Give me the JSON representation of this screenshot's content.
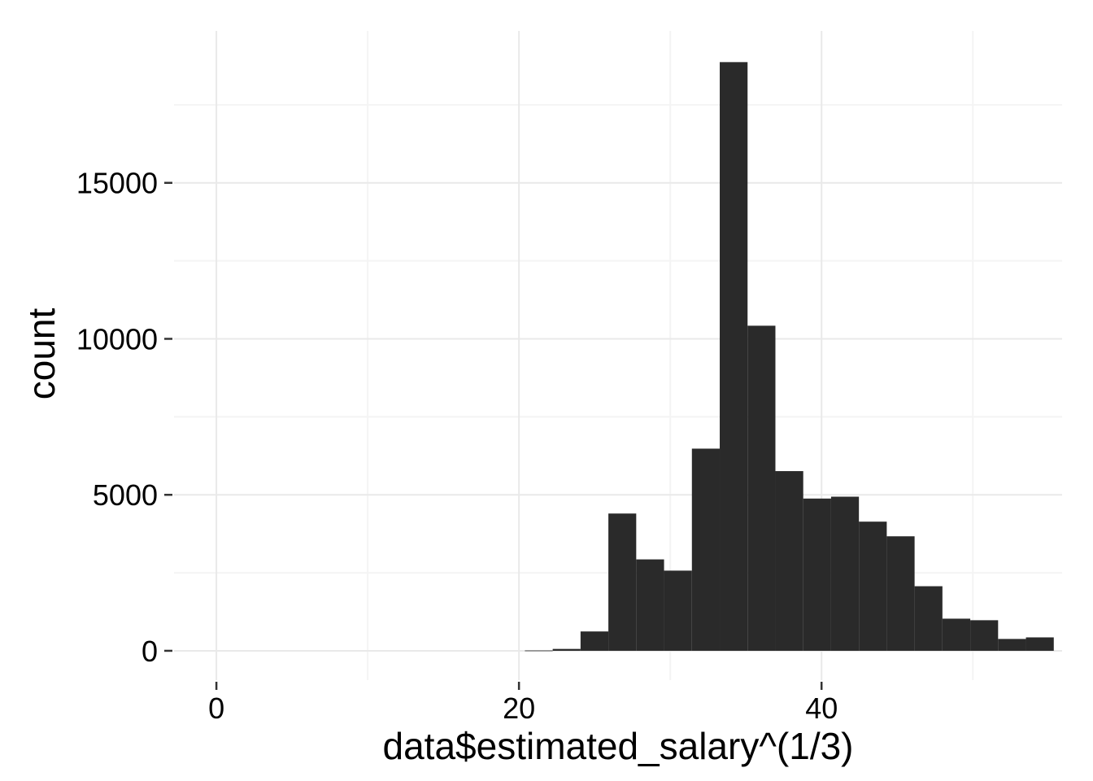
{
  "chart_data": {
    "type": "bar",
    "subtype": "histogram",
    "title": "",
    "xlabel": "data$estimated_salary^(1/3)",
    "ylabel": "count",
    "xlim": [
      -2.8,
      55.9
    ],
    "ylim": [
      -940,
      19870
    ],
    "x_ticks": [
      0,
      20,
      40
    ],
    "x_tick_labels": [
      "0",
      "20",
      "40"
    ],
    "x_minor_ticks": [
      10,
      30,
      50
    ],
    "y_ticks": [
      0,
      5000,
      10000,
      15000
    ],
    "y_tick_labels": [
      "0",
      "5000",
      "10000",
      "15000"
    ],
    "y_minor_ticks": [
      2500,
      7500,
      12500,
      17500
    ],
    "grid": true,
    "bar_color": "#2a2a2a",
    "grid_color": "#e9e9e9",
    "bins": [
      {
        "x0": 20.39,
        "x1": 22.23,
        "count": 10
      },
      {
        "x0": 22.23,
        "x1": 24.07,
        "count": 60
      },
      {
        "x0": 24.07,
        "x1": 25.91,
        "count": 620
      },
      {
        "x0": 25.91,
        "x1": 27.75,
        "count": 4400
      },
      {
        "x0": 27.75,
        "x1": 29.59,
        "count": 2930
      },
      {
        "x0": 29.59,
        "x1": 31.43,
        "count": 2570
      },
      {
        "x0": 31.43,
        "x1": 33.27,
        "count": 6480
      },
      {
        "x0": 33.27,
        "x1": 35.11,
        "count": 18870
      },
      {
        "x0": 35.11,
        "x1": 36.95,
        "count": 10420
      },
      {
        "x0": 36.95,
        "x1": 38.79,
        "count": 5760
      },
      {
        "x0": 38.79,
        "x1": 40.63,
        "count": 4880
      },
      {
        "x0": 40.63,
        "x1": 42.47,
        "count": 4940
      },
      {
        "x0": 42.47,
        "x1": 44.31,
        "count": 4140
      },
      {
        "x0": 44.31,
        "x1": 46.15,
        "count": 3670
      },
      {
        "x0": 46.15,
        "x1": 47.99,
        "count": 2070
      },
      {
        "x0": 47.99,
        "x1": 49.83,
        "count": 1030
      },
      {
        "x0": 49.83,
        "x1": 51.67,
        "count": 980
      },
      {
        "x0": 51.67,
        "x1": 53.51,
        "count": 380
      },
      {
        "x0": 53.51,
        "x1": 55.35,
        "count": 430
      }
    ]
  }
}
